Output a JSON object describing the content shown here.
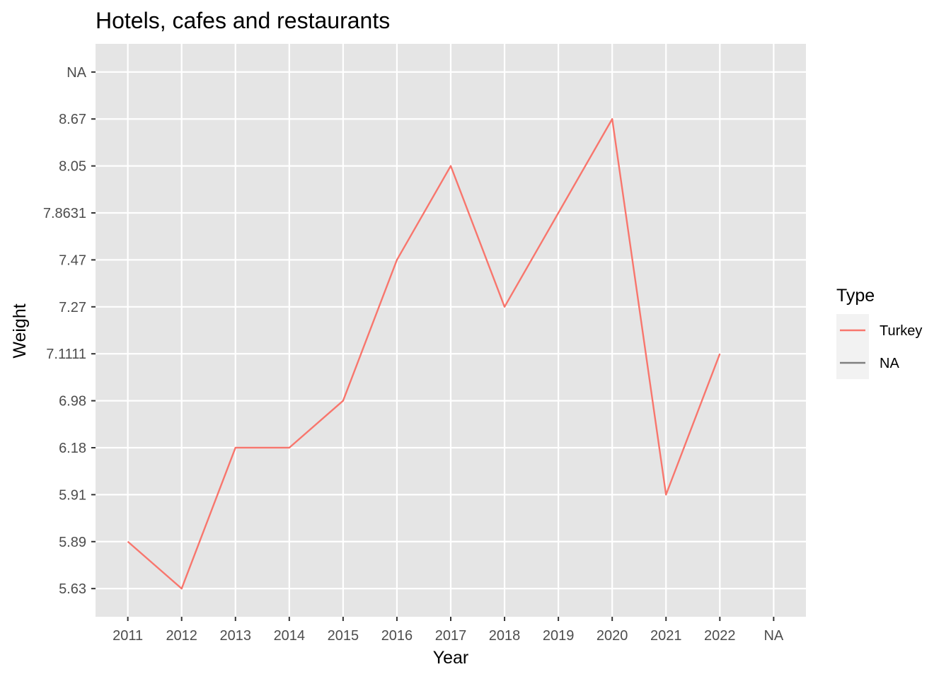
{
  "chart_data": {
    "type": "line",
    "title": "Hotels, cafes and restaurants",
    "xlabel": "Year",
    "ylabel": "Weight",
    "x_categories": [
      "2011",
      "2012",
      "2013",
      "2014",
      "2015",
      "2016",
      "2017",
      "2018",
      "2019",
      "2020",
      "2021",
      "2022",
      "NA"
    ],
    "y_categories": [
      "5.63",
      "5.89",
      "5.91",
      "6.18",
      "6.98",
      "7.1111",
      "7.27",
      "7.47",
      "7.8631",
      "8.05",
      "8.67",
      "NA"
    ],
    "series": [
      {
        "name": "Turkey",
        "color": "#F8766D",
        "x": [
          "2011",
          "2012",
          "2013",
          "2014",
          "2015",
          "2016",
          "2017",
          "2018",
          "2019",
          "2020",
          "2021",
          "2022"
        ],
        "y": [
          "5.89",
          "5.63",
          "6.18",
          "6.18",
          "6.98",
          "7.47",
          "8.05",
          "7.27",
          "7.8631",
          "8.67",
          "5.91",
          "7.1111"
        ]
      }
    ],
    "legend": {
      "title": "Type",
      "position": "right",
      "entries": [
        {
          "label": "Turkey",
          "color": "#F8766D"
        },
        {
          "label": "NA",
          "color": "#7F7F7F"
        }
      ]
    },
    "grid": true,
    "panel_background": "#E5E5E5",
    "grid_color": "#FFFFFF"
  }
}
